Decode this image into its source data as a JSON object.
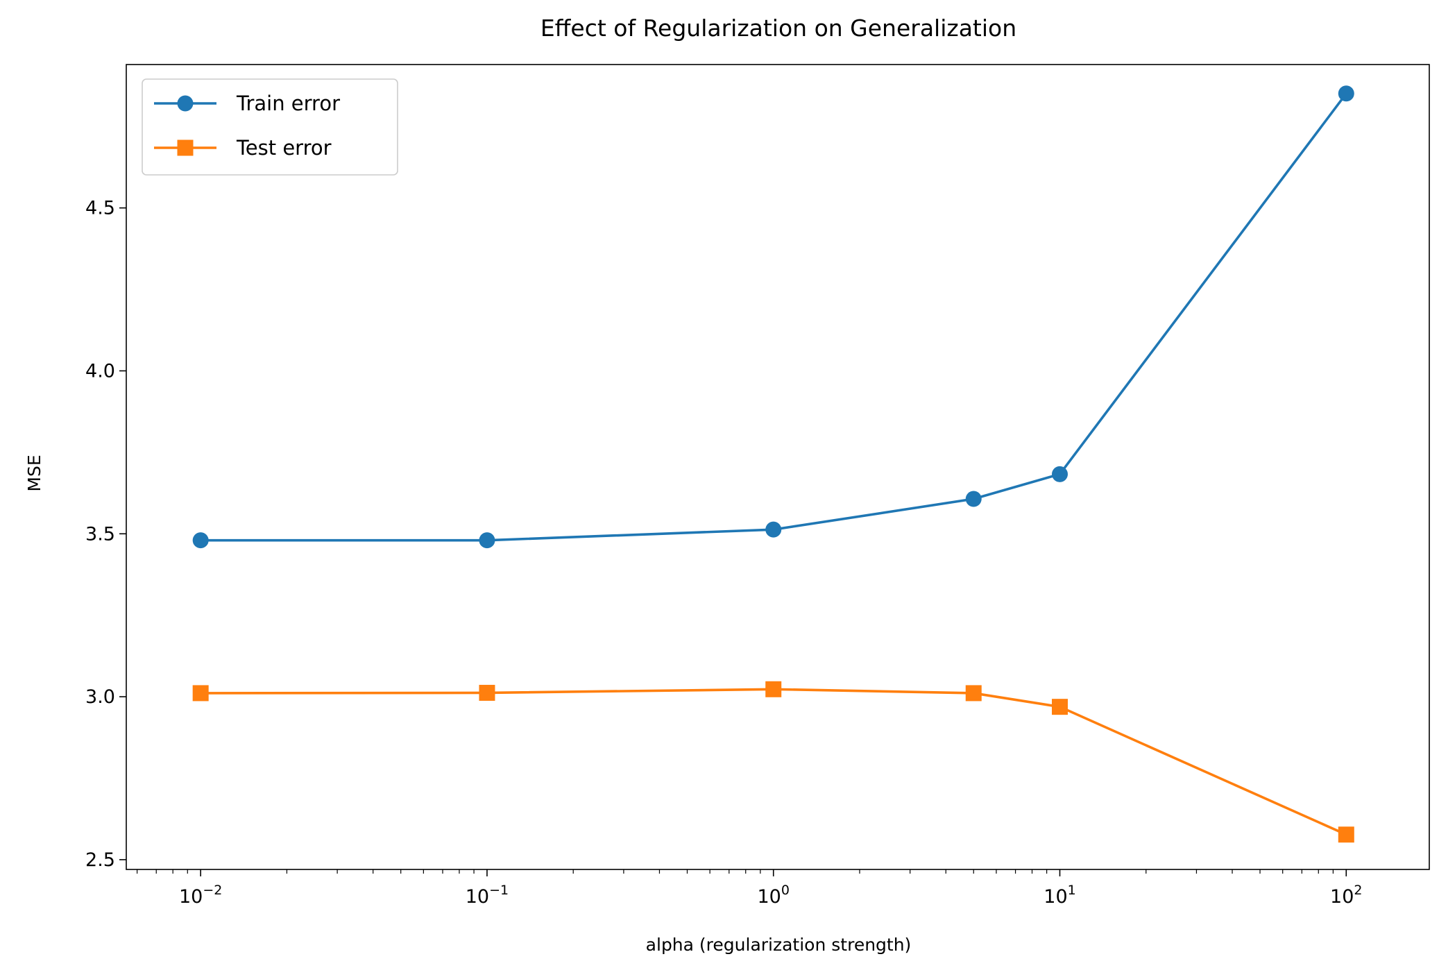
{
  "chart_data": {
    "type": "line",
    "title": "Effect of Regularization on Generalization",
    "xlabel": "alpha (regularization strength)",
    "ylabel": "MSE",
    "xscale": "log",
    "xlim": [
      0.0055,
      195
    ],
    "ylim": [
      2.47,
      4.94
    ],
    "x": [
      0.01,
      0.1,
      1,
      5,
      10,
      100
    ],
    "xticks": [
      {
        "value": 0.01,
        "base": "10",
        "exp": "−2"
      },
      {
        "value": 0.1,
        "base": "10",
        "exp": "−1"
      },
      {
        "value": 1,
        "base": "10",
        "exp": "0"
      },
      {
        "value": 10,
        "base": "10",
        "exp": "1"
      },
      {
        "value": 100,
        "base": "10",
        "exp": "2"
      }
    ],
    "yticks": [
      2.5,
      3.0,
      3.5,
      4.0,
      4.5
    ],
    "ytick_labels": [
      "2.5",
      "3.0",
      "3.5",
      "4.0",
      "4.5"
    ],
    "grid": false,
    "legend_position": "top-left",
    "series": [
      {
        "name": "Train error",
        "marker": "circle",
        "color": "#1f77b4",
        "values": [
          3.48,
          3.48,
          3.513,
          3.607,
          3.683,
          4.851
        ]
      },
      {
        "name": "Test error",
        "marker": "square",
        "color": "#ff7f0e",
        "values": [
          3.011,
          3.012,
          3.023,
          3.011,
          2.969,
          2.577
        ]
      }
    ]
  }
}
